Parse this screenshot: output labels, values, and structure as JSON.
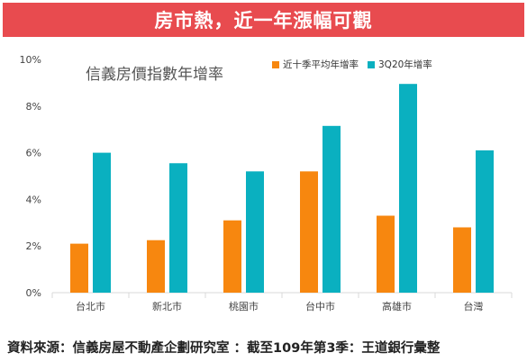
{
  "banner": {
    "title": "房市熱，近一年漲幅可觀"
  },
  "source_note": "資料來源：信義房屋不動產企劃研究室 ：截至109年第3季：王道銀行彙整",
  "colors": {
    "banner": "#e84b4f",
    "series1": "#f7870f",
    "series2": "#0ab0c0",
    "grid": "#d9d9d9"
  },
  "chart_data": {
    "type": "bar",
    "title": "信義房價指數年增率",
    "categories": [
      "台北市",
      "新北市",
      "桃園市",
      "台中市",
      "高雄市",
      "台灣"
    ],
    "series": [
      {
        "name": "近十季平均年增率",
        "color": "#f7870f",
        "values": [
          2.1,
          2.25,
          3.1,
          5.2,
          3.3,
          2.8
        ]
      },
      {
        "name": "3Q20年增率",
        "color": "#0ab0c0",
        "values": [
          6.0,
          5.55,
          5.2,
          7.15,
          8.95,
          6.1
        ]
      }
    ],
    "ylim": [
      0,
      10
    ],
    "yticks": [
      "0%",
      "2%",
      "4%",
      "6%",
      "8%",
      "10%"
    ],
    "ytick_values": [
      0,
      2,
      4,
      6,
      8,
      10
    ],
    "grid": false,
    "legend": "top"
  }
}
